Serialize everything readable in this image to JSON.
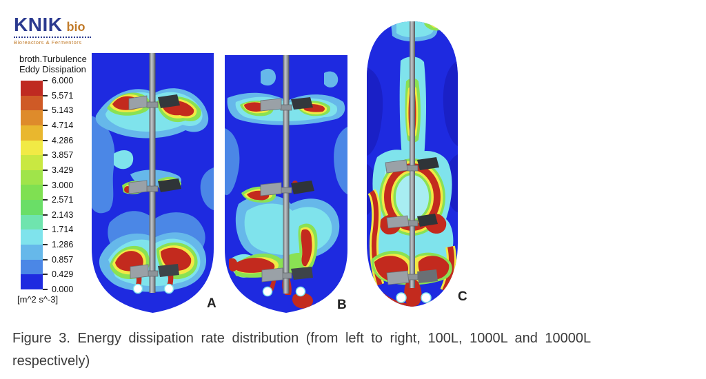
{
  "logo": {
    "brand": "KNIK",
    "suffix": "bio",
    "tagline": "Bioreactors & Fermentors",
    "brand_color": "#2b3a8f",
    "accent_color": "#c17b2a"
  },
  "legend": {
    "title_line1": "broth.Turbulence",
    "title_line2": "Eddy Dissipation",
    "units": "[m^2 s^-3]",
    "ticks": [
      "6.000",
      "5.571",
      "5.143",
      "4.714",
      "4.286",
      "3.857",
      "3.429",
      "3.000",
      "2.571",
      "2.143",
      "1.714",
      "1.286",
      "0.857",
      "0.429",
      "0.000"
    ],
    "band_colors_top_to_bottom": [
      "#bf2a21",
      "#cf5a26",
      "#de8b2b",
      "#e9b72e",
      "#f1ea45",
      "#c9e841",
      "#a0e44a",
      "#7fe052",
      "#6ade67",
      "#6fe4ae",
      "#7fe3ec",
      "#66b8ea",
      "#4b87e6",
      "#1e2ae0"
    ]
  },
  "panels": [
    {
      "label": "A"
    },
    {
      "label": "B"
    },
    {
      "label": "C"
    }
  ],
  "caption": {
    "line1": "Figure 3. Energy dissipation rate distribution (from left to right, 100L, 1000L and 10000L",
    "line2": "respectively)"
  }
}
